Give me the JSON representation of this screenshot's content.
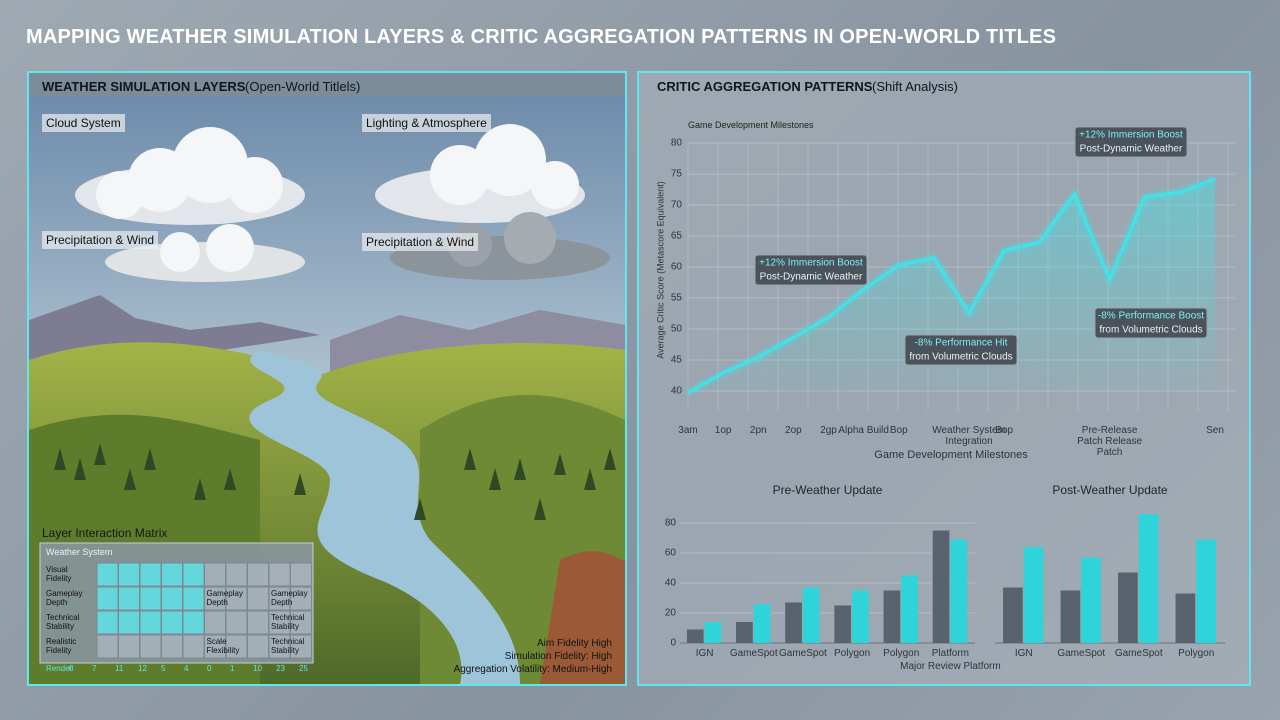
{
  "header": {
    "title": "MAPPING WEATHER SIMULATION LAYERS & CRITIC AGGREGATION PATTERNS IN OPEN-WORLD TITLES"
  },
  "left_panel": {
    "title": "WEATHER SIMULATION LAYERS",
    "subtitle": "(Open-World Titlels)",
    "labels": [
      "Cloud System",
      "Lighting & Atmosphere",
      "Precipitation & Wind",
      "Precipitation & Wind"
    ],
    "matrix": {
      "title": "Layer Interaction Matrix",
      "header": "Weather System",
      "rows": [
        {
          "label": "Visual Fidelity",
          "notes": []
        },
        {
          "label": "Gameplay Depth",
          "notes": [
            "Gameplay Depth",
            "Gameplay Depth"
          ]
        },
        {
          "label": "Technical Stability",
          "notes": [
            "Technical Stability"
          ]
        },
        {
          "label": "Realistic Fidelity",
          "notes": [
            "Scale Flexibility",
            "Technical Stability"
          ]
        }
      ],
      "scale": [
        "Render",
        "0",
        "7",
        "11",
        "12",
        "5",
        "4",
        "0",
        "1",
        "10",
        "23",
        "25"
      ]
    },
    "stats": [
      "Aim Fidelity High",
      "Simulation Fidelity: High",
      "Aggregation Volatility: Medium-High"
    ]
  },
  "right_panel": {
    "title": "CRITIC AGGREGATION PATTERNS",
    "subtitle": "(Shift Analysis)"
  },
  "chart_data": [
    {
      "type": "line",
      "subtitle": "Game Development Milestones",
      "x_label": "Game Development Milestones",
      "y_label": "Average Critic Score (Metascore Equivalent)",
      "categories": [
        "3am",
        "1op",
        "2pn",
        "2op",
        "2gp",
        "Alpha Build",
        "Bop",
        null,
        "Weather System Integration",
        "Bop",
        null,
        null,
        "Pre-Release Patch Release Patch",
        null,
        null,
        "Sen"
      ],
      "values": [
        39.7,
        42.9,
        45.5,
        48.6,
        51.9,
        56.4,
        60.3,
        61.5,
        52.6,
        62.7,
        64,
        71.8,
        58,
        71.3,
        72.1,
        74.2
      ],
      "color": "#3fe3e8",
      "ylim": [
        40,
        80
      ],
      "yticks": [
        40,
        45,
        50,
        55,
        60,
        65,
        70,
        75,
        80
      ],
      "grid": true,
      "annotations": [
        [
          "+12% Immersion Boost",
          "Post-Dynamic Weather"
        ],
        [
          "-8% Performance Hit",
          "from Volumetric Clouds"
        ],
        [
          "+12% Immersion Boost",
          "Post-Dynamic Weather"
        ],
        [
          "-8% Performance Boost",
          "from Volumetric Clouds"
        ]
      ]
    },
    {
      "type": "bar",
      "title": "Pre-Weather Update",
      "x_label": "Major Review Platform",
      "categories": [
        "IGN",
        "GameSpot",
        "GameSpot",
        "Polygon",
        "Polygon",
        "Platform"
      ],
      "series": [
        {
          "color": "#58636d",
          "values": [
            9,
            14,
            27,
            25,
            35,
            75
          ]
        },
        {
          "color": "#2fd4da",
          "values": [
            14,
            26,
            37,
            35,
            45,
            69
          ]
        }
      ],
      "ylim": [
        0,
        100
      ],
      "yticks": [
        0,
        20,
        40,
        60,
        80
      ],
      "grid": true
    },
    {
      "type": "bar",
      "title": "Post-Weather Update",
      "categories": [
        "IGN",
        "GameSpot",
        "GameSpot",
        "Polygon"
      ],
      "series": [
        {
          "color": "#58636d",
          "values": [
            37,
            35,
            47,
            33
          ]
        },
        {
          "color": "#2fd4da",
          "values": [
            64,
            57,
            86,
            69
          ]
        }
      ],
      "ylim": [
        0,
        100
      ],
      "grid": false
    }
  ]
}
